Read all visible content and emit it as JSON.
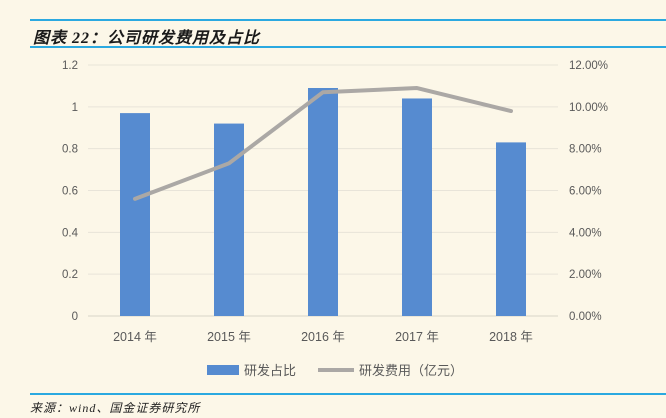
{
  "header": {
    "title": "图表 22：公司研发费用及占比"
  },
  "footer": {
    "source": "来源：wind、国金证券研究所"
  },
  "colors": {
    "background": "#FCF7E8",
    "accent_rule": "#2BA9E0",
    "bar": "#568BD0",
    "line": "#ABA8A5",
    "tick_text": "#595959",
    "gridline": "#E8E4D9",
    "axis_line": "#D9D4C7",
    "title_text": "#1a1a1a"
  },
  "chart_data": {
    "type": "bar",
    "subtype": "bar+line-combo",
    "title": "公司研发费用及占比",
    "categories": [
      "2014 年",
      "2015 年",
      "2016 年",
      "2017 年",
      "2018 年"
    ],
    "series": [
      {
        "name": "研发占比",
        "type": "bar",
        "axis": "left",
        "values": [
          0.97,
          0.92,
          1.09,
          1.04,
          0.83
        ]
      },
      {
        "name": "研发费用（亿元）",
        "type": "line",
        "axis": "right",
        "values": [
          5.6,
          7.3,
          10.7,
          10.9,
          9.8
        ]
      }
    ],
    "left_axis": {
      "min": 0,
      "max": 1.2,
      "step": 0.2,
      "ticks": [
        "0",
        "0.2",
        "0.4",
        "0.6",
        "0.8",
        "1",
        "1.2"
      ]
    },
    "right_axis": {
      "min": 0,
      "max": 12,
      "step": 2,
      "ticks": [
        "0.00%",
        "2.00%",
        "4.00%",
        "6.00%",
        "8.00%",
        "10.00%",
        "12.00%"
      ]
    },
    "grid": true,
    "legend_position": "bottom",
    "legend": [
      {
        "label": "研发占比",
        "swatch": "bar"
      },
      {
        "label": "研发费用（亿元）",
        "swatch": "line"
      }
    ]
  }
}
